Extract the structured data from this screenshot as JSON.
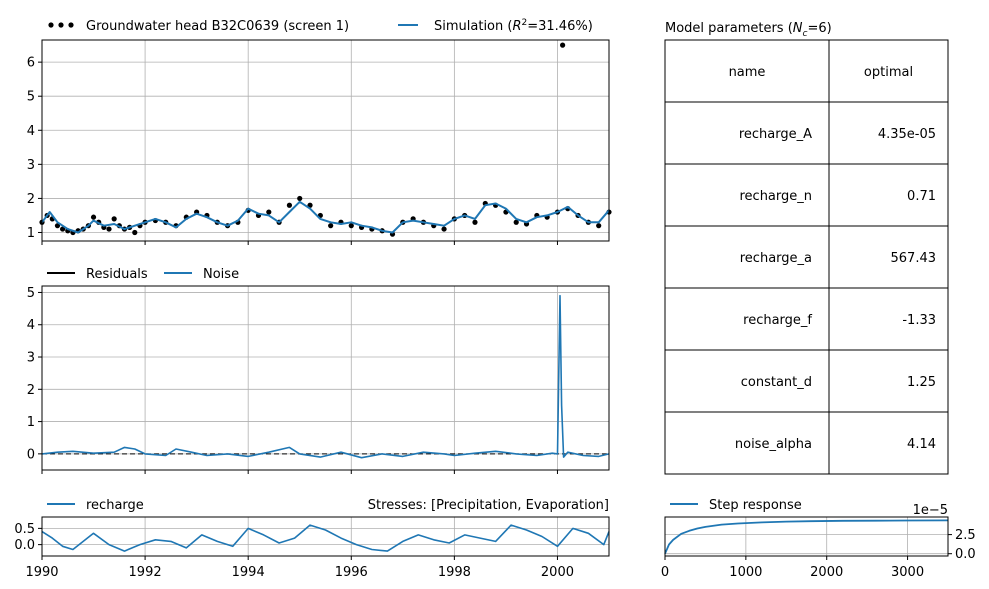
{
  "chart_data": [
    {
      "type": "line",
      "panel": "head",
      "legend": [
        {
          "label": "Groundwater head B32C0639 (screen 1)",
          "style": "dots",
          "color": "#000000"
        },
        {
          "label_prefix": "Simulation (",
          "label_r2": "R",
          "label_sup": "2",
          "label_suffix": "=31.46%)",
          "style": "line",
          "color": "#1f77b4"
        }
      ],
      "xlim": [
        1990,
        2001
      ],
      "ylim": [
        0.75,
        6.65
      ],
      "yticks": [
        1,
        2,
        3,
        4,
        5,
        6
      ],
      "grid": true,
      "series": [
        {
          "name": "Groundwater head B32C0639 (screen 1)",
          "x": [
            1990.0,
            1990.1,
            1990.2,
            1990.3,
            1990.4,
            1990.5,
            1990.6,
            1990.7,
            1990.8,
            1990.9,
            1991.0,
            1991.1,
            1991.2,
            1991.3,
            1991.4,
            1991.5,
            1991.6,
            1991.7,
            1991.8,
            1991.9,
            1992.0,
            1992.2,
            1992.4,
            1992.6,
            1992.8,
            1993.0,
            1993.2,
            1993.4,
            1993.6,
            1993.8,
            1994.0,
            1994.2,
            1994.4,
            1994.6,
            1994.8,
            1995.0,
            1995.2,
            1995.4,
            1995.6,
            1995.8,
            1996.0,
            1996.2,
            1996.4,
            1996.6,
            1996.8,
            1997.0,
            1997.2,
            1997.4,
            1997.6,
            1997.8,
            1998.0,
            1998.2,
            1998.4,
            1998.6,
            1998.8,
            1999.0,
            1999.2,
            1999.4,
            1999.6,
            1999.8,
            2000.0,
            2000.1,
            2000.2,
            2000.4,
            2000.6,
            2000.8,
            2001.0
          ],
          "y": [
            1.3,
            1.5,
            1.4,
            1.2,
            1.1,
            1.05,
            1.0,
            1.05,
            1.1,
            1.2,
            1.45,
            1.3,
            1.15,
            1.1,
            1.4,
            1.2,
            1.1,
            1.15,
            1.0,
            1.2,
            1.3,
            1.35,
            1.3,
            1.2,
            1.45,
            1.6,
            1.5,
            1.3,
            1.2,
            1.3,
            1.65,
            1.5,
            1.6,
            1.3,
            1.8,
            2.0,
            1.8,
            1.5,
            1.2,
            1.3,
            1.2,
            1.15,
            1.1,
            1.05,
            0.95,
            1.3,
            1.4,
            1.3,
            1.2,
            1.1,
            1.4,
            1.5,
            1.3,
            1.85,
            1.8,
            1.6,
            1.3,
            1.25,
            1.5,
            1.45,
            1.6,
            6.5,
            1.7,
            1.5,
            1.3,
            1.2,
            1.6
          ]
        },
        {
          "name": "Simulation",
          "x": [
            1990.0,
            1990.15,
            1990.3,
            1990.5,
            1990.7,
            1990.9,
            1991.0,
            1991.2,
            1991.4,
            1991.6,
            1991.8,
            1992.0,
            1992.2,
            1992.4,
            1992.6,
            1992.8,
            1993.0,
            1993.2,
            1993.4,
            1993.6,
            1993.8,
            1994.0,
            1994.2,
            1994.4,
            1994.6,
            1994.8,
            1995.0,
            1995.2,
            1995.4,
            1995.6,
            1995.8,
            1996.0,
            1996.2,
            1996.4,
            1996.6,
            1996.8,
            1997.0,
            1997.2,
            1997.4,
            1997.6,
            1997.8,
            1998.0,
            1998.2,
            1998.4,
            1998.6,
            1998.8,
            1999.0,
            1999.2,
            1999.4,
            1999.6,
            1999.8,
            2000.0,
            2000.2,
            2000.4,
            2000.6,
            2000.8,
            2001.0
          ],
          "y": [
            1.3,
            1.6,
            1.3,
            1.1,
            1.0,
            1.2,
            1.35,
            1.2,
            1.25,
            1.1,
            1.2,
            1.3,
            1.4,
            1.3,
            1.15,
            1.4,
            1.55,
            1.45,
            1.3,
            1.2,
            1.35,
            1.7,
            1.55,
            1.5,
            1.3,
            1.6,
            1.9,
            1.7,
            1.4,
            1.3,
            1.25,
            1.3,
            1.2,
            1.15,
            1.05,
            1.0,
            1.3,
            1.35,
            1.3,
            1.25,
            1.2,
            1.4,
            1.5,
            1.4,
            1.8,
            1.85,
            1.7,
            1.4,
            1.3,
            1.45,
            1.5,
            1.6,
            1.75,
            1.5,
            1.3,
            1.3,
            1.65
          ]
        }
      ]
    },
    {
      "type": "line",
      "panel": "residuals",
      "legend": [
        {
          "label": "Residuals",
          "style": "line",
          "color": "#000000"
        },
        {
          "label": "Noise",
          "style": "line",
          "color": "#1f77b4"
        }
      ],
      "xlim": [
        1990,
        2001
      ],
      "ylim": [
        -0.5,
        5.2
      ],
      "yticks": [
        0,
        1,
        2,
        3,
        4,
        5
      ],
      "grid": true,
      "series": [
        {
          "name": "Noise",
          "x": [
            1990.0,
            1990.3,
            1990.6,
            1991.0,
            1991.4,
            1991.6,
            1991.8,
            1992.0,
            1992.4,
            1992.6,
            1992.9,
            1993.2,
            1993.6,
            1994.0,
            1994.4,
            1994.8,
            1995.0,
            1995.4,
            1995.8,
            1996.2,
            1996.6,
            1997.0,
            1997.4,
            1997.8,
            1998.0,
            1998.4,
            1998.8,
            1999.2,
            1999.6,
            1999.9,
            2000.0,
            2000.05,
            2000.08,
            2000.12,
            2000.2,
            2000.5,
            2000.8,
            2001.0
          ],
          "y": [
            0.0,
            0.05,
            0.08,
            0.02,
            0.05,
            0.2,
            0.15,
            0.0,
            -0.05,
            0.15,
            0.05,
            -0.05,
            0.0,
            -0.08,
            0.05,
            0.2,
            0.0,
            -0.1,
            0.05,
            -0.12,
            0.0,
            -0.08,
            0.05,
            0.0,
            -0.05,
            0.02,
            0.08,
            0.0,
            -0.05,
            0.02,
            0.0,
            4.9,
            1.5,
            -0.1,
            0.05,
            -0.05,
            -0.08,
            0.0
          ]
        }
      ]
    },
    {
      "type": "line",
      "panel": "stresses",
      "legend": [
        {
          "label": "recharge",
          "style": "line",
          "color": "#1f77b4"
        }
      ],
      "title_right": "Stresses: [Precipitation, Evaporation]",
      "xlim": [
        1990,
        2001
      ],
      "xticks": [
        1990,
        1992,
        1994,
        1996,
        1998,
        2000
      ],
      "ylim": [
        -0.35,
        0.85
      ],
      "yticks": [
        0.0,
        0.5
      ],
      "ytick_labels": [
        "0.0",
        "0.5"
      ],
      "grid": true,
      "series": [
        {
          "name": "recharge",
          "x": [
            1990.0,
            1990.2,
            1990.4,
            1990.6,
            1990.8,
            1991.0,
            1991.3,
            1991.6,
            1991.9,
            1992.2,
            1992.5,
            1992.8,
            1993.1,
            1993.4,
            1993.7,
            1994.0,
            1994.3,
            1994.6,
            1994.9,
            1995.2,
            1995.5,
            1995.8,
            1996.1,
            1996.4,
            1996.7,
            1997.0,
            1997.3,
            1997.6,
            1997.9,
            1998.2,
            1998.5,
            1998.8,
            1999.1,
            1999.4,
            1999.7,
            2000.0,
            2000.3,
            2000.6,
            2000.9,
            2001.0
          ],
          "y": [
            0.4,
            0.2,
            -0.05,
            -0.15,
            0.1,
            0.35,
            0.0,
            -0.2,
            0.0,
            0.15,
            0.1,
            -0.1,
            0.3,
            0.1,
            -0.05,
            0.5,
            0.3,
            0.05,
            0.2,
            0.6,
            0.45,
            0.2,
            0.0,
            -0.15,
            -0.2,
            0.1,
            0.3,
            0.15,
            0.05,
            0.3,
            0.2,
            0.1,
            0.6,
            0.45,
            0.25,
            -0.05,
            0.5,
            0.35,
            0.0,
            0.4
          ]
        }
      ]
    },
    {
      "type": "table",
      "panel": "parameters",
      "title_prefix": "Model parameters (",
      "title_var": "N",
      "title_sub": "c",
      "title_suffix": "=6)",
      "header": [
        "name",
        "optimal"
      ],
      "rows": [
        [
          "recharge_A",
          "4.35e-05"
        ],
        [
          "recharge_n",
          "0.71"
        ],
        [
          "recharge_a",
          "567.43"
        ],
        [
          "recharge_f",
          "-1.33"
        ],
        [
          "constant_d",
          "1.25"
        ],
        [
          "noise_alpha",
          "4.14"
        ]
      ]
    },
    {
      "type": "line",
      "panel": "step_response",
      "legend": [
        {
          "label": "Step response",
          "style": "line",
          "color": "#1f77b4"
        }
      ],
      "offset_label": "1e−5",
      "xlim": [
        0,
        3500
      ],
      "xticks": [
        0,
        1000,
        2000,
        3000
      ],
      "ylim": [
        -0.3,
        4.8
      ],
      "yticks": [
        0.0,
        2.5
      ],
      "ytick_labels": [
        "0.0",
        "2.5"
      ],
      "grid": true,
      "series": [
        {
          "name": "Step response",
          "x": [
            0,
            50,
            100,
            200,
            300,
            400,
            500,
            700,
            900,
            1200,
            1500,
            1800,
            2200,
            2600,
            3000,
            3500
          ],
          "y": [
            0.0,
            1.2,
            1.8,
            2.6,
            3.0,
            3.3,
            3.5,
            3.8,
            3.95,
            4.1,
            4.2,
            4.25,
            4.3,
            4.32,
            4.34,
            4.35
          ]
        }
      ]
    }
  ]
}
